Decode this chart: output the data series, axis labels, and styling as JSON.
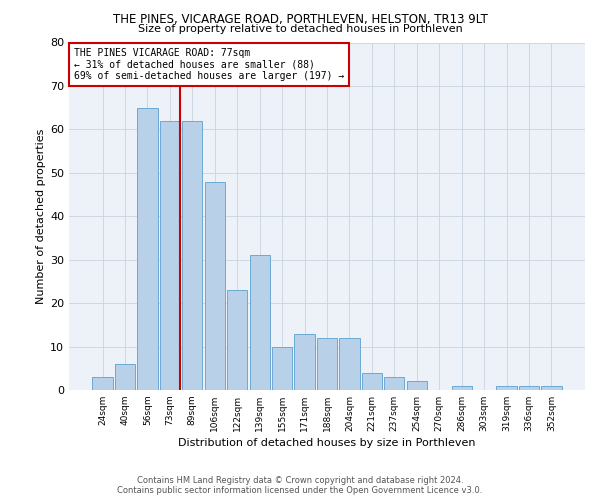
{
  "title": "THE PINES, VICARAGE ROAD, PORTHLEVEN, HELSTON, TR13 9LT",
  "subtitle": "Size of property relative to detached houses in Porthleven",
  "xlabel": "Distribution of detached houses by size in Porthleven",
  "ylabel": "Number of detached properties",
  "categories": [
    "24sqm",
    "40sqm",
    "56sqm",
    "73sqm",
    "89sqm",
    "106sqm",
    "122sqm",
    "139sqm",
    "155sqm",
    "171sqm",
    "188sqm",
    "204sqm",
    "221sqm",
    "237sqm",
    "254sqm",
    "270sqm",
    "286sqm",
    "303sqm",
    "319sqm",
    "336sqm",
    "352sqm"
  ],
  "values": [
    3,
    6,
    65,
    62,
    62,
    48,
    23,
    31,
    10,
    13,
    12,
    12,
    4,
    3,
    2,
    0,
    1,
    0,
    1,
    1,
    1
  ],
  "bar_color": "#b8d0e8",
  "bar_edge_color": "#6aaad4",
  "annotation_text_line1": "THE PINES VICARAGE ROAD: 77sqm",
  "annotation_text_line2": "← 31% of detached houses are smaller (88)",
  "annotation_text_line3": "69% of semi-detached houses are larger (197) →",
  "annotation_box_color": "#ffffff",
  "annotation_box_edge": "#cc0000",
  "red_line_color": "#cc0000",
  "grid_color": "#c8d4e0",
  "ylim": [
    0,
    80
  ],
  "yticks": [
    0,
    10,
    20,
    30,
    40,
    50,
    60,
    70,
    80
  ],
  "footer_line1": "Contains HM Land Registry data © Crown copyright and database right 2024.",
  "footer_line2": "Contains public sector information licensed under the Open Government Licence v3.0.",
  "bg_color": "#edf2f9"
}
